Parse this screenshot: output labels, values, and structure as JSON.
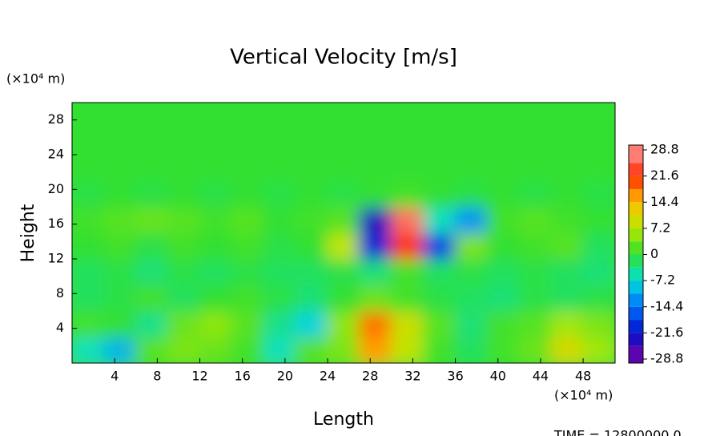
{
  "chart_data": {
    "type": "heatmap",
    "title": "Vertical Velocity [m/s]",
    "xlabel": "Length",
    "ylabel": "Height",
    "xunit": "(×10⁴ m)",
    "yunit": "(×10⁴ m)",
    "footer": "TIME = 12800000.0",
    "xlim": [
      0,
      51
    ],
    "ylim": [
      0,
      30
    ],
    "xticks": [
      4,
      8,
      12,
      16,
      20,
      24,
      28,
      32,
      36,
      40,
      44,
      48
    ],
    "yticks": [
      4,
      8,
      12,
      16,
      20,
      24,
      28
    ],
    "x": [
      1.5,
      4.5,
      7.5,
      10.5,
      13.5,
      16.5,
      19.5,
      22.5,
      25.5,
      28.5,
      31.5,
      34.5,
      37.5,
      40.5,
      43.5,
      46.5,
      49.5
    ],
    "y": [
      1.5,
      4.5,
      7.5,
      10.5,
      13.5,
      16.5,
      19.5,
      22.5,
      25.5,
      28.5
    ],
    "z": [
      [
        -6,
        -10,
        2,
        4,
        3,
        1,
        -6,
        2,
        4,
        16,
        8,
        1,
        -2,
        1,
        3,
        10,
        6
      ],
      [
        1,
        0,
        -4,
        3,
        5,
        2,
        -4,
        -8,
        5,
        18,
        9,
        2,
        -3,
        1,
        2,
        6,
        4
      ],
      [
        -2,
        -1,
        1,
        -2,
        0,
        1,
        -1,
        -3,
        0,
        3,
        1,
        -1,
        -2,
        -3,
        -1,
        -2,
        -1
      ],
      [
        -2,
        -1,
        -3,
        -1,
        -2,
        -1,
        -2,
        -2,
        -1,
        -3,
        1,
        -2,
        -1,
        -2,
        -1,
        -2,
        -3
      ],
      [
        0,
        1,
        -1,
        1,
        0,
        1,
        -1,
        0,
        8,
        -20,
        22,
        -18,
        4,
        0,
        1,
        2,
        -2
      ],
      [
        1,
        2,
        3,
        2,
        1,
        2,
        0,
        1,
        2,
        -24,
        26,
        -6,
        -12,
        1,
        2,
        1,
        0
      ],
      [
        -1,
        0,
        -1,
        0,
        -1,
        0,
        -1,
        0,
        -1,
        0,
        1,
        0,
        -1,
        0,
        -1,
        0,
        -1
      ],
      [
        0,
        0,
        0,
        0,
        0,
        0,
        0,
        0,
        0,
        0,
        0,
        0,
        0,
        0,
        0,
        0,
        0
      ],
      [
        0,
        0,
        0,
        0,
        0,
        0,
        0,
        0,
        0,
        0,
        0,
        0,
        0,
        0,
        0,
        0,
        0
      ],
      [
        0,
        0,
        0,
        0,
        0,
        0,
        0,
        0,
        0,
        0,
        0,
        0,
        0,
        0,
        0,
        0,
        0
      ]
    ],
    "colorbar": {
      "ticks": [
        -28.8,
        -21.6,
        -14.4,
        -7.2,
        0,
        7.2,
        14.4,
        21.6,
        28.8
      ],
      "colors": [
        "#7a00a8",
        "#0010c8",
        "#0070ff",
        "#00e0d8",
        "#30e030",
        "#b8e800",
        "#ffc000",
        "#ff2a00",
        "#ff9a9a"
      ]
    }
  }
}
